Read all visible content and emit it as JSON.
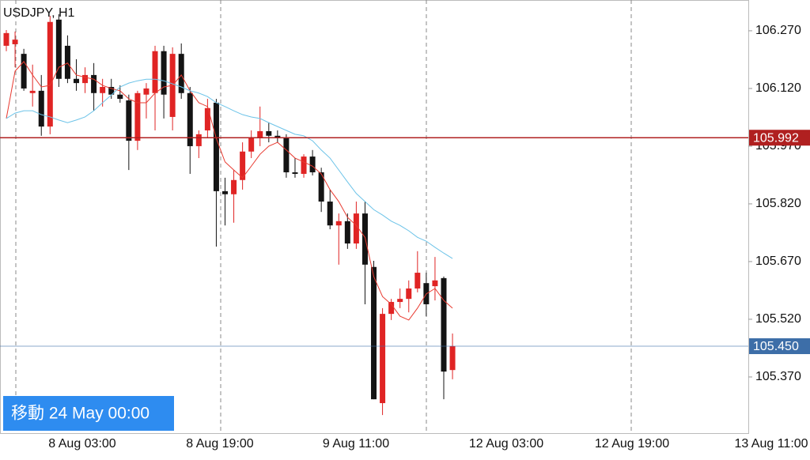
{
  "chart_data": {
    "type": "candlestick",
    "title": "USDJPY, H1",
    "open": [
      106.231,
      106.235,
      106.21,
      106.108,
      106.114,
      106.021,
      106.299,
      106.231,
      106.145,
      106.134,
      106.155,
      106.108,
      106.124,
      106.104,
      106.089,
      105.984,
      106.104,
      106.108,
      106.217,
      106.046,
      106.21,
      106.108,
      105.97,
      106.011,
      106.083,
      105.853,
      105.845,
      105.882,
      105.956,
      105.991,
      106.009,
      105.997,
      105.991,
      105.902,
      105.898,
      105.943,
      105.902,
      105.826,
      105.764,
      105.775,
      105.717,
      105.795,
      105.656,
      105.302,
      105.534,
      105.565,
      105.573,
      105.6,
      105.614,
      105.606,
      105.627,
      105.388
    ],
    "high": [
      106.272,
      106.268,
      106.223,
      106.182,
      106.155,
      106.309,
      106.313,
      106.258,
      106.196,
      106.175,
      106.186,
      106.145,
      106.145,
      106.128,
      106.104,
      106.114,
      106.134,
      106.231,
      106.231,
      106.227,
      106.237,
      106.124,
      106.011,
      106.093,
      106.093,
      105.888,
      105.908,
      105.98,
      106.011,
      106.073,
      106.032,
      106.011,
      106.001,
      105.939,
      105.949,
      105.96,
      105.914,
      105.857,
      105.795,
      105.795,
      105.826,
      105.826,
      105.672,
      105.549,
      105.573,
      105.6,
      105.621,
      105.697,
      105.641,
      105.682,
      105.631,
      105.483
    ],
    "low": [
      106.217,
      106.175,
      106.114,
      106.073,
      105.997,
      106.001,
      106.124,
      106.134,
      106.114,
      106.108,
      106.062,
      106.073,
      106.093,
      106.083,
      105.908,
      105.96,
      106.042,
      106.011,
      106.042,
      106.011,
      106.093,
      105.898,
      105.939,
      105.991,
      105.709,
      105.764,
      105.771,
      105.857,
      105.939,
      105.97,
      105.98,
      105.98,
      105.888,
      105.888,
      105.888,
      105.894,
      105.799,
      105.754,
      105.662,
      105.703,
      105.703,
      105.559,
      105.312,
      105.271,
      105.518,
      105.549,
      105.538,
      105.59,
      105.528,
      105.569,
      105.312,
      105.364
    ],
    "close": [
      106.264,
      106.247,
      106.12,
      106.114,
      106.021,
      106.293,
      106.145,
      106.145,
      106.134,
      106.155,
      106.108,
      106.124,
      106.104,
      106.093,
      105.984,
      106.108,
      106.12,
      106.217,
      106.104,
      106.21,
      106.108,
      105.97,
      106.001,
      106.069,
      105.853,
      105.845,
      105.882,
      105.956,
      105.991,
      106.009,
      105.997,
      105.991,
      105.902,
      105.898,
      105.943,
      105.902,
      105.826,
      105.764,
      105.775,
      105.717,
      105.795,
      105.662,
      105.312,
      105.534,
      105.565,
      105.573,
      105.6,
      105.641,
      105.559,
      105.621,
      105.384,
      105.45
    ],
    "up_color": "#e02424",
    "down_color": "#141414",
    "overlays": [
      {
        "color": "#e8392f",
        "values": [
          106.042,
          106.165,
          106.19,
          106.155,
          106.124,
          106.128,
          106.175,
          106.186,
          106.155,
          106.149,
          106.144,
          106.128,
          106.12,
          106.114,
          106.093,
          106.083,
          106.083,
          106.108,
          106.124,
          106.128,
          106.155,
          106.114,
          106.083,
          106.073,
          105.99,
          105.929,
          105.908,
          105.888,
          105.918,
          105.949,
          105.97,
          105.98,
          105.96,
          105.939,
          105.929,
          105.918,
          105.898,
          105.857,
          105.826,
          105.785,
          105.764,
          105.733,
          105.631,
          105.579,
          105.559,
          105.528,
          105.518,
          105.549,
          105.586,
          105.6,
          105.569,
          105.549
        ]
      },
      {
        "color": "#6cc3e8",
        "values": [
          106.042,
          106.056,
          106.062,
          106.062,
          106.052,
          106.046,
          106.038,
          106.031,
          106.038,
          106.046,
          106.062,
          106.083,
          106.103,
          106.124,
          106.134,
          106.14,
          106.144,
          106.144,
          106.14,
          106.132,
          106.124,
          106.114,
          106.108,
          106.099,
          106.083,
          106.073,
          106.062,
          106.052,
          106.046,
          106.042,
          106.031,
          106.021,
          106.011,
          106.001,
          105.997,
          105.984,
          105.96,
          105.939,
          105.908,
          105.877,
          105.847,
          105.826,
          105.805,
          105.791,
          105.775,
          105.764,
          105.75,
          105.733,
          105.723,
          105.707,
          105.692,
          105.678
        ]
      }
    ],
    "ylim": [
      105.224,
      106.35
    ],
    "yticks": [
      {
        "value": 106.27,
        "label": "106.270"
      },
      {
        "value": 106.12,
        "label": "106.120"
      },
      {
        "value": 105.97,
        "label": "105.970"
      },
      {
        "value": 105.82,
        "label": "105.820"
      },
      {
        "value": 105.67,
        "label": "105.670"
      },
      {
        "value": 105.52,
        "label": "105.520"
      },
      {
        "value": 105.37,
        "label": "105.370"
      }
    ],
    "price_lines": [
      {
        "value": 105.992,
        "label": "105.992",
        "color": "#b02020"
      },
      {
        "value": 105.45,
        "label": "105.450",
        "color": "#3d6ea8"
      }
    ],
    "x_axis_labels": [
      "8 Aug 03:00",
      "8 Aug 19:00",
      "9 Aug 11:00",
      "12 Aug 03:00",
      "12 Aug 19:00",
      "13 Aug 11:00"
    ],
    "cursor_label": "移動 24 May 00:00"
  }
}
